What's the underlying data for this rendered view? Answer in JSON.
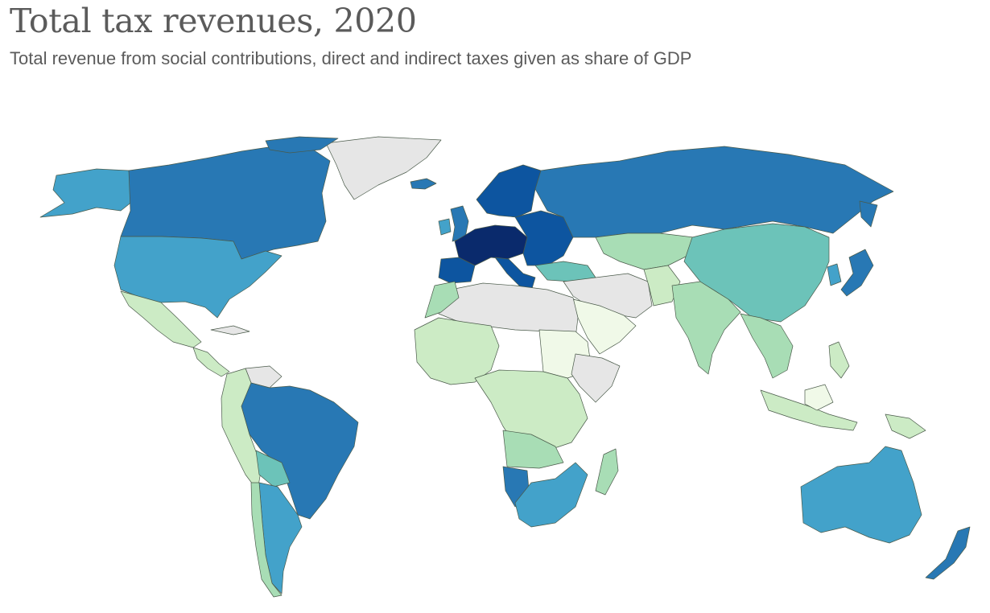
{
  "title": "Total tax revenues, 2020",
  "subtitle": "Total revenue from social contributions, direct and indirect taxes given as share of GDP",
  "map_data": {
    "type": "choropleth",
    "projection": "world (Robinson-like)",
    "legend": "none visible",
    "colors": {
      "no_data": "#e6e6e6",
      "lowest": "#f0f9e8",
      "low": "#ccebc5",
      "mid_low": "#a8ddb5",
      "mid": "#6cc3b9",
      "mid_high": "#43a2ca",
      "high": "#2878b4",
      "higher": "#0d55a0",
      "highest": "#0a2a6c"
    },
    "regions": [
      {
        "name": "Alaska / USA",
        "class": "mid_high"
      },
      {
        "name": "Canada",
        "class": "high"
      },
      {
        "name": "Greenland",
        "class": "no_data"
      },
      {
        "name": "Mexico",
        "class": "low"
      },
      {
        "name": "Central America",
        "class": "low"
      },
      {
        "name": "Venezuela",
        "class": "no_data"
      },
      {
        "name": "Brazil",
        "class": "high"
      },
      {
        "name": "Andean South America",
        "class": "low"
      },
      {
        "name": "Argentina",
        "class": "mid_high"
      },
      {
        "name": "Western Europe",
        "class": "highest"
      },
      {
        "name": "Nordics",
        "class": "higher"
      },
      {
        "name": "Russia",
        "class": "high"
      },
      {
        "name": "Kazakhstan",
        "class": "mid_low"
      },
      {
        "name": "China",
        "class": "mid"
      },
      {
        "name": "Japan",
        "class": "high"
      },
      {
        "name": "India",
        "class": "mid_low"
      },
      {
        "name": "Arabian Peninsula",
        "class": "lowest"
      },
      {
        "name": "North Africa",
        "class": "no_data"
      },
      {
        "name": "West Africa",
        "class": "low"
      },
      {
        "name": "Central Africa",
        "class": "low"
      },
      {
        "name": "Southern Africa",
        "class": "mid_high"
      },
      {
        "name": "Southeast Asia",
        "class": "mid_low"
      },
      {
        "name": "Indonesia",
        "class": "low"
      },
      {
        "name": "Australia",
        "class": "mid_high"
      },
      {
        "name": "New Zealand",
        "class": "high"
      }
    ]
  }
}
